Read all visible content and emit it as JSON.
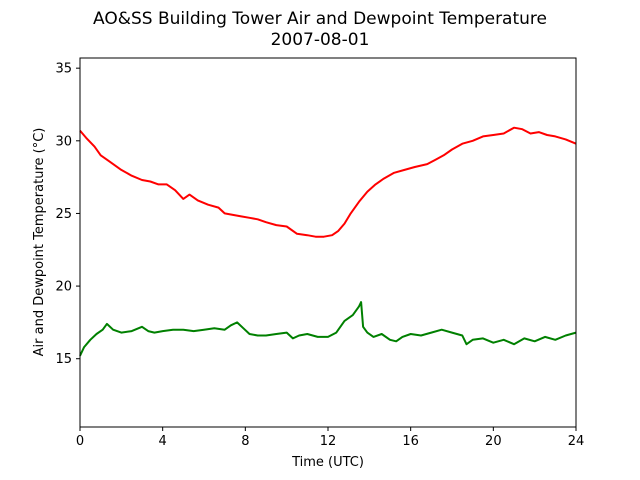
{
  "chart_data": {
    "type": "line",
    "title": "AO&SS Building Tower Air and Dewpoint Temperature",
    "subtitle": "2007-08-01",
    "xlabel": "Time (UTC)",
    "ylabel": "Air and Dewpoint Temperature (°C)",
    "xlim": [
      0,
      24
    ],
    "ylim": [
      10.3,
      35.7
    ],
    "xticks": [
      0,
      4,
      8,
      12,
      16,
      20,
      24
    ],
    "yticks": [
      15,
      20,
      25,
      30,
      35
    ],
    "grid": false,
    "series": [
      {
        "color": "#ff0000",
        "x": [
          0,
          0.3,
          0.7,
          1.0,
          1.4,
          2.0,
          2.5,
          3.0,
          3.4,
          3.8,
          4.2,
          4.6,
          5.0,
          5.3,
          5.7,
          6.2,
          6.7,
          7.0,
          7.4,
          7.8,
          8.2,
          8.6,
          9.0,
          9.5,
          10.0,
          10.5,
          11.0,
          11.4,
          11.8,
          12.2,
          12.5,
          12.8,
          13.1,
          13.5,
          13.9,
          14.3,
          14.7,
          15.2,
          15.7,
          16.2,
          16.8,
          17.2,
          17.6,
          18.0,
          18.5,
          19.0,
          19.5,
          20.0,
          20.5,
          21.0,
          21.4,
          21.8,
          22.2,
          22.6,
          23.0,
          23.5,
          24.0
        ],
        "y": [
          30.7,
          30.2,
          29.6,
          29.0,
          28.6,
          28.0,
          27.6,
          27.3,
          27.2,
          27.0,
          27.0,
          26.6,
          26.0,
          26.3,
          25.9,
          25.6,
          25.4,
          25.0,
          24.9,
          24.8,
          24.7,
          24.6,
          24.4,
          24.2,
          24.1,
          23.6,
          23.5,
          23.4,
          23.4,
          23.5,
          23.8,
          24.3,
          25.0,
          25.8,
          26.5,
          27.0,
          27.4,
          27.8,
          28.0,
          28.2,
          28.4,
          28.7,
          29.0,
          29.4,
          29.8,
          30.0,
          30.3,
          30.4,
          30.5,
          30.9,
          30.8,
          30.5,
          30.6,
          30.4,
          30.3,
          30.1,
          29.8
        ]
      },
      {
        "color": "#008000",
        "x": [
          0,
          0.2,
          0.5,
          0.8,
          1.1,
          1.3,
          1.6,
          2.0,
          2.5,
          3.0,
          3.3,
          3.6,
          4.0,
          4.5,
          5.0,
          5.5,
          6.0,
          6.5,
          7.0,
          7.3,
          7.6,
          7.9,
          8.2,
          8.6,
          9.0,
          9.5,
          10.0,
          10.3,
          10.6,
          11.0,
          11.5,
          12.0,
          12.4,
          12.8,
          13.2,
          13.5,
          13.6,
          13.7,
          13.9,
          14.2,
          14.6,
          15.0,
          15.3,
          15.6,
          16.0,
          16.5,
          17.0,
          17.5,
          18.0,
          18.5,
          18.7,
          19.0,
          19.5,
          20.0,
          20.5,
          21.0,
          21.5,
          22.0,
          22.5,
          23.0,
          23.5,
          24.0
        ],
        "y": [
          15.2,
          15.8,
          16.3,
          16.7,
          17.0,
          17.4,
          17.0,
          16.8,
          16.9,
          17.2,
          16.9,
          16.8,
          16.9,
          17.0,
          17.0,
          16.9,
          17.0,
          17.1,
          17.0,
          17.3,
          17.5,
          17.1,
          16.7,
          16.6,
          16.6,
          16.7,
          16.8,
          16.4,
          16.6,
          16.7,
          16.5,
          16.5,
          16.8,
          17.6,
          18.0,
          18.6,
          18.9,
          17.2,
          16.8,
          16.5,
          16.7,
          16.3,
          16.2,
          16.5,
          16.7,
          16.6,
          16.8,
          17.0,
          16.8,
          16.6,
          16.0,
          16.3,
          16.4,
          16.1,
          16.3,
          16.0,
          16.4,
          16.2,
          16.5,
          16.3,
          16.6,
          16.8
        ]
      }
    ]
  }
}
